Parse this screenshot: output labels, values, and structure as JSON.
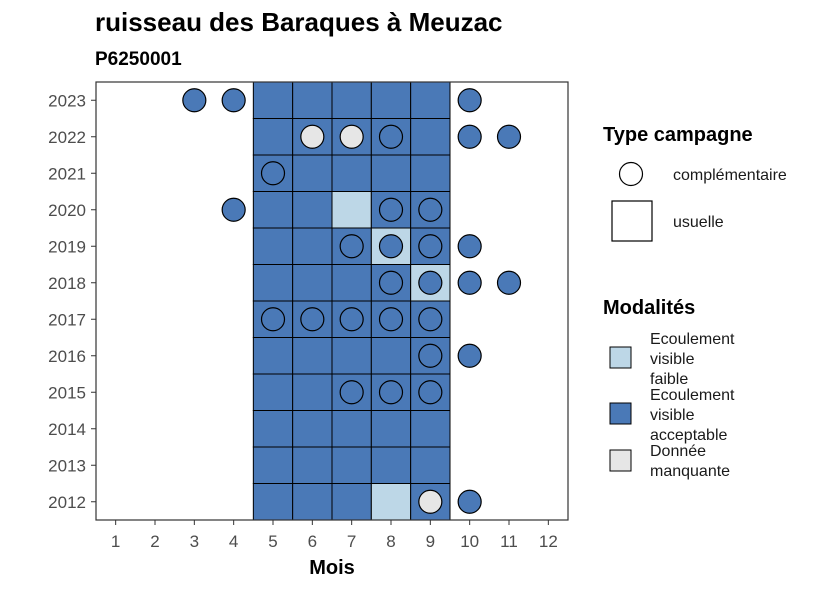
{
  "chart_data": {
    "type": "heatmap",
    "title": "ruisseau des Baraques à Meuzac",
    "subtitle": "P6250001",
    "xlabel": "Mois",
    "ylabel": "",
    "x_ticks": [
      "1",
      "2",
      "3",
      "4",
      "5",
      "6",
      "7",
      "8",
      "9",
      "10",
      "11",
      "12"
    ],
    "y_ticks": [
      "2012",
      "2013",
      "2014",
      "2015",
      "2016",
      "2017",
      "2018",
      "2019",
      "2020",
      "2021",
      "2022",
      "2023"
    ],
    "xlim": [
      0.5,
      12.5
    ],
    "ylim": [
      2011.5,
      2023.5
    ],
    "colors": {
      "Ecoulement visible faible": "#bdd7e7",
      "Ecoulement visible acceptable": "#4a79b7",
      "Donnée manquante": "#e6e6e6"
    },
    "usual_campaigns": [
      {
        "year": 2012,
        "month": 5,
        "mod": "Ecoulement visible acceptable"
      },
      {
        "year": 2012,
        "month": 6,
        "mod": "Ecoulement visible acceptable"
      },
      {
        "year": 2012,
        "month": 7,
        "mod": "Ecoulement visible acceptable"
      },
      {
        "year": 2012,
        "month": 8,
        "mod": "Ecoulement visible faible"
      },
      {
        "year": 2012,
        "month": 9,
        "mod": "Ecoulement visible acceptable"
      },
      {
        "year": 2013,
        "month": 5,
        "mod": "Ecoulement visible acceptable"
      },
      {
        "year": 2013,
        "month": 6,
        "mod": "Ecoulement visible acceptable"
      },
      {
        "year": 2013,
        "month": 7,
        "mod": "Ecoulement visible acceptable"
      },
      {
        "year": 2013,
        "month": 8,
        "mod": "Ecoulement visible acceptable"
      },
      {
        "year": 2013,
        "month": 9,
        "mod": "Ecoulement visible acceptable"
      },
      {
        "year": 2014,
        "month": 5,
        "mod": "Ecoulement visible acceptable"
      },
      {
        "year": 2014,
        "month": 6,
        "mod": "Ecoulement visible acceptable"
      },
      {
        "year": 2014,
        "month": 7,
        "mod": "Ecoulement visible acceptable"
      },
      {
        "year": 2014,
        "month": 8,
        "mod": "Ecoulement visible acceptable"
      },
      {
        "year": 2014,
        "month": 9,
        "mod": "Ecoulement visible acceptable"
      },
      {
        "year": 2015,
        "month": 5,
        "mod": "Ecoulement visible acceptable"
      },
      {
        "year": 2015,
        "month": 6,
        "mod": "Ecoulement visible acceptable"
      },
      {
        "year": 2015,
        "month": 7,
        "mod": "Ecoulement visible acceptable"
      },
      {
        "year": 2015,
        "month": 8,
        "mod": "Ecoulement visible acceptable"
      },
      {
        "year": 2015,
        "month": 9,
        "mod": "Ecoulement visible acceptable"
      },
      {
        "year": 2016,
        "month": 5,
        "mod": "Ecoulement visible acceptable"
      },
      {
        "year": 2016,
        "month": 6,
        "mod": "Ecoulement visible acceptable"
      },
      {
        "year": 2016,
        "month": 7,
        "mod": "Ecoulement visible acceptable"
      },
      {
        "year": 2016,
        "month": 8,
        "mod": "Ecoulement visible acceptable"
      },
      {
        "year": 2016,
        "month": 9,
        "mod": "Ecoulement visible acceptable"
      },
      {
        "year": 2017,
        "month": 5,
        "mod": "Ecoulement visible acceptable"
      },
      {
        "year": 2017,
        "month": 6,
        "mod": "Ecoulement visible acceptable"
      },
      {
        "year": 2017,
        "month": 7,
        "mod": "Ecoulement visible acceptable"
      },
      {
        "year": 2017,
        "month": 8,
        "mod": "Ecoulement visible acceptable"
      },
      {
        "year": 2017,
        "month": 9,
        "mod": "Ecoulement visible acceptable"
      },
      {
        "year": 2018,
        "month": 5,
        "mod": "Ecoulement visible acceptable"
      },
      {
        "year": 2018,
        "month": 6,
        "mod": "Ecoulement visible acceptable"
      },
      {
        "year": 2018,
        "month": 7,
        "mod": "Ecoulement visible acceptable"
      },
      {
        "year": 2018,
        "month": 8,
        "mod": "Ecoulement visible acceptable"
      },
      {
        "year": 2018,
        "month": 9,
        "mod": "Ecoulement visible faible"
      },
      {
        "year": 2019,
        "month": 5,
        "mod": "Ecoulement visible acceptable"
      },
      {
        "year": 2019,
        "month": 6,
        "mod": "Ecoulement visible acceptable"
      },
      {
        "year": 2019,
        "month": 7,
        "mod": "Ecoulement visible acceptable"
      },
      {
        "year": 2019,
        "month": 8,
        "mod": "Ecoulement visible faible"
      },
      {
        "year": 2019,
        "month": 9,
        "mod": "Ecoulement visible acceptable"
      },
      {
        "year": 2020,
        "month": 5,
        "mod": "Ecoulement visible acceptable"
      },
      {
        "year": 2020,
        "month": 6,
        "mod": "Ecoulement visible acceptable"
      },
      {
        "year": 2020,
        "month": 7,
        "mod": "Ecoulement visible faible"
      },
      {
        "year": 2020,
        "month": 8,
        "mod": "Ecoulement visible acceptable"
      },
      {
        "year": 2020,
        "month": 9,
        "mod": "Ecoulement visible acceptable"
      },
      {
        "year": 2021,
        "month": 5,
        "mod": "Ecoulement visible acceptable"
      },
      {
        "year": 2021,
        "month": 6,
        "mod": "Ecoulement visible acceptable"
      },
      {
        "year": 2021,
        "month": 7,
        "mod": "Ecoulement visible acceptable"
      },
      {
        "year": 2021,
        "month": 8,
        "mod": "Ecoulement visible acceptable"
      },
      {
        "year": 2021,
        "month": 9,
        "mod": "Ecoulement visible acceptable"
      },
      {
        "year": 2022,
        "month": 5,
        "mod": "Ecoulement visible acceptable"
      },
      {
        "year": 2022,
        "month": 6,
        "mod": "Ecoulement visible acceptable"
      },
      {
        "year": 2022,
        "month": 7,
        "mod": "Ecoulement visible acceptable"
      },
      {
        "year": 2022,
        "month": 8,
        "mod": "Ecoulement visible acceptable"
      },
      {
        "year": 2022,
        "month": 9,
        "mod": "Ecoulement visible acceptable"
      },
      {
        "year": 2023,
        "month": 5,
        "mod": "Ecoulement visible acceptable"
      },
      {
        "year": 2023,
        "month": 6,
        "mod": "Ecoulement visible acceptable"
      },
      {
        "year": 2023,
        "month": 7,
        "mod": "Ecoulement visible acceptable"
      },
      {
        "year": 2023,
        "month": 8,
        "mod": "Ecoulement visible acceptable"
      },
      {
        "year": 2023,
        "month": 9,
        "mod": "Ecoulement visible acceptable"
      }
    ],
    "complementary_campaigns": [
      {
        "year": 2012,
        "month": 9,
        "mod": "Donnée manquante"
      },
      {
        "year": 2012,
        "month": 10,
        "mod": "Ecoulement visible acceptable"
      },
      {
        "year": 2015,
        "month": 7,
        "mod": "Ecoulement visible acceptable"
      },
      {
        "year": 2015,
        "month": 8,
        "mod": "Ecoulement visible acceptable"
      },
      {
        "year": 2015,
        "month": 9,
        "mod": "Ecoulement visible acceptable"
      },
      {
        "year": 2016,
        "month": 9,
        "mod": "Ecoulement visible acceptable"
      },
      {
        "year": 2016,
        "month": 10,
        "mod": "Ecoulement visible acceptable"
      },
      {
        "year": 2017,
        "month": 5,
        "mod": "Ecoulement visible acceptable"
      },
      {
        "year": 2017,
        "month": 6,
        "mod": "Ecoulement visible acceptable"
      },
      {
        "year": 2017,
        "month": 7,
        "mod": "Ecoulement visible acceptable"
      },
      {
        "year": 2017,
        "month": 8,
        "mod": "Ecoulement visible acceptable"
      },
      {
        "year": 2017,
        "month": 9,
        "mod": "Ecoulement visible acceptable"
      },
      {
        "year": 2018,
        "month": 8,
        "mod": "Ecoulement visible acceptable"
      },
      {
        "year": 2018,
        "month": 9,
        "mod": "Ecoulement visible acceptable"
      },
      {
        "year": 2018,
        "month": 10,
        "mod": "Ecoulement visible acceptable"
      },
      {
        "year": 2018,
        "month": 11,
        "mod": "Ecoulement visible acceptable"
      },
      {
        "year": 2019,
        "month": 7,
        "mod": "Ecoulement visible acceptable"
      },
      {
        "year": 2019,
        "month": 8,
        "mod": "Ecoulement visible acceptable"
      },
      {
        "year": 2019,
        "month": 9,
        "mod": "Ecoulement visible acceptable"
      },
      {
        "year": 2019,
        "month": 10,
        "mod": "Ecoulement visible acceptable"
      },
      {
        "year": 2020,
        "month": 4,
        "mod": "Ecoulement visible acceptable"
      },
      {
        "year": 2020,
        "month": 8,
        "mod": "Ecoulement visible acceptable"
      },
      {
        "year": 2020,
        "month": 9,
        "mod": "Ecoulement visible acceptable"
      },
      {
        "year": 2021,
        "month": 5,
        "mod": "Ecoulement visible acceptable"
      },
      {
        "year": 2022,
        "month": 6,
        "mod": "Donnée manquante"
      },
      {
        "year": 2022,
        "month": 7,
        "mod": "Donnée manquante"
      },
      {
        "year": 2022,
        "month": 8,
        "mod": "Ecoulement visible acceptable"
      },
      {
        "year": 2022,
        "month": 10,
        "mod": "Ecoulement visible acceptable"
      },
      {
        "year": 2022,
        "month": 11,
        "mod": "Ecoulement visible acceptable"
      },
      {
        "year": 2023,
        "month": 3,
        "mod": "Ecoulement visible acceptable"
      },
      {
        "year": 2023,
        "month": 4,
        "mod": "Ecoulement visible acceptable"
      },
      {
        "year": 2023,
        "month": 10,
        "mod": "Ecoulement visible acceptable"
      }
    ],
    "legend": {
      "placement": "right",
      "type_title": "Type campagne",
      "type_items": [
        "complémentaire",
        "usuelle"
      ],
      "mod_title": "Modalités",
      "mod_items": [
        [
          "Ecoulement",
          "visible",
          "faible"
        ],
        [
          "Ecoulement",
          "visible",
          "acceptable"
        ],
        [
          "Donnée",
          "manquante"
        ]
      ]
    }
  }
}
